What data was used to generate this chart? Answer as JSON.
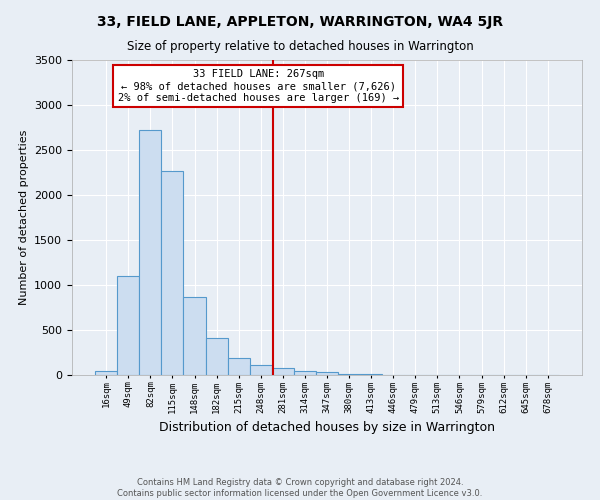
{
  "title": "33, FIELD LANE, APPLETON, WARRINGTON, WA4 5JR",
  "subtitle": "Size of property relative to detached houses in Warrington",
  "xlabel": "Distribution of detached houses by size in Warrington",
  "ylabel": "Number of detached properties",
  "footnote1": "Contains HM Land Registry data © Crown copyright and database right 2024.",
  "footnote2": "Contains public sector information licensed under the Open Government Licence v3.0.",
  "bin_labels": [
    "16sqm",
    "49sqm",
    "82sqm",
    "115sqm",
    "148sqm",
    "182sqm",
    "215sqm",
    "248sqm",
    "281sqm",
    "314sqm",
    "347sqm",
    "380sqm",
    "413sqm",
    "446sqm",
    "479sqm",
    "513sqm",
    "546sqm",
    "579sqm",
    "612sqm",
    "645sqm",
    "678sqm"
  ],
  "bar_values": [
    50,
    1100,
    2720,
    2270,
    870,
    415,
    185,
    110,
    75,
    50,
    30,
    15,
    10,
    5,
    2,
    2,
    2,
    1,
    0,
    0,
    0
  ],
  "bar_color": "#ccddf0",
  "bar_edge_color": "#5599cc",
  "ylim": [
    0,
    3500
  ],
  "yticks": [
    0,
    500,
    1000,
    1500,
    2000,
    2500,
    3000,
    3500
  ],
  "annotation_title": "33 FIELD LANE: 267sqm",
  "annotation_line1": "← 98% of detached houses are smaller (7,626)",
  "annotation_line2": "2% of semi-detached houses are larger (169) →",
  "vline_color": "#cc0000",
  "annotation_box_color": "#ffffff",
  "annotation_box_edge": "#cc0000",
  "background_color": "#e8eef5",
  "grid_color": "#ffffff",
  "spine_color": "#aaaaaa"
}
